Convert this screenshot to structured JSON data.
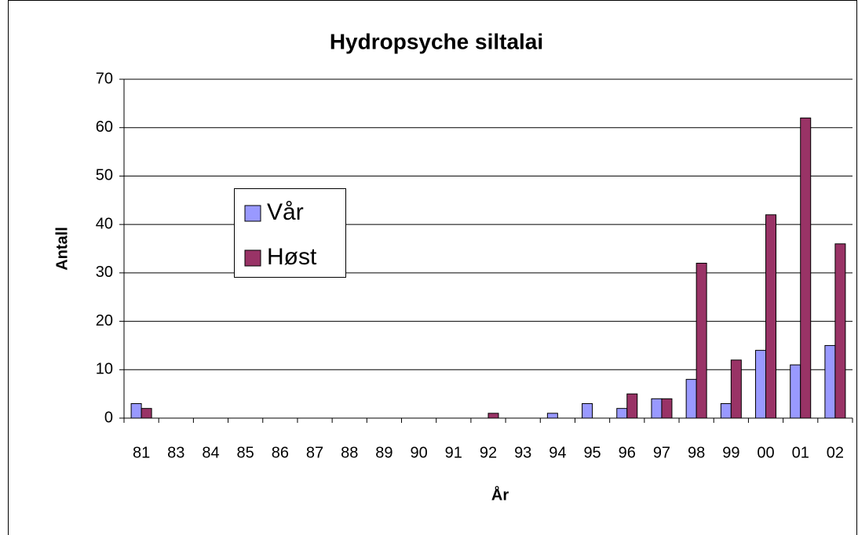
{
  "chart_data": {
    "type": "bar",
    "title": "Hydropsyche siltalai",
    "x_label": "År",
    "y_label": "Antall",
    "categories": [
      "81",
      "83",
      "84",
      "85",
      "86",
      "87",
      "88",
      "89",
      "90",
      "91",
      "92",
      "93",
      "94",
      "95",
      "96",
      "97",
      "98",
      "99",
      "00",
      "01",
      "02"
    ],
    "series": [
      {
        "name": "Vår",
        "color": "#9999ff",
        "values": [
          3,
          0,
          0,
          0,
          0,
          0,
          0,
          0,
          0,
          0,
          0,
          0,
          1,
          3,
          2,
          4,
          8,
          3,
          14,
          11,
          15
        ]
      },
      {
        "name": "Høst",
        "color": "#993366",
        "values": [
          2,
          0,
          0,
          0,
          0,
          0,
          0,
          0,
          0,
          0,
          1,
          0,
          0,
          0,
          5,
          4,
          32,
          12,
          42,
          62,
          36
        ]
      }
    ],
    "ylim": [
      0,
      70
    ],
    "yticks": [
      0,
      10,
      20,
      30,
      40,
      50,
      60,
      70
    ],
    "grid": true
  }
}
